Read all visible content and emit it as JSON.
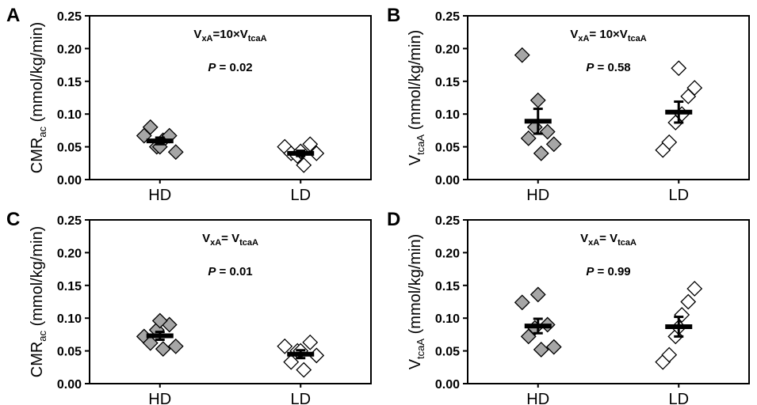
{
  "colors": {
    "hd_fill": "#a6a6a6",
    "ld_fill": "#ffffff",
    "stroke": "#000000"
  },
  "chart_data": [
    {
      "panel": "A",
      "type": "scatter",
      "ylabel_main": "CMR",
      "ylabel_sub": "ac",
      "ylabel_tail": "(mmol/kg/min)",
      "annotation": {
        "lhs": "V",
        "lhs_sub": "xA",
        "op": "=10×V",
        "rhs_sub": "tcaA"
      },
      "p_label": "P",
      "p_value": "= 0.02",
      "ylim": [
        0,
        0.25
      ],
      "yticks": [
        "0.00",
        "0.05",
        "0.10",
        "0.15",
        "0.20",
        "0.25"
      ],
      "categories": [
        "HD",
        "LD"
      ],
      "series": [
        {
          "category": "HD",
          "fill": "hd",
          "points": [
            0.067,
            0.08,
            0.05,
            0.06,
            0.067,
            0.042,
            0.05
          ],
          "mean": 0.059,
          "sem": 0.005
        },
        {
          "category": "LD",
          "fill": "ld",
          "points": [
            0.05,
            0.04,
            0.036,
            0.022,
            0.054,
            0.04,
            0.043
          ],
          "mean": 0.04,
          "sem": 0.004
        }
      ]
    },
    {
      "panel": "B",
      "type": "scatter",
      "ylabel_main": "V",
      "ylabel_sub": "tcaA",
      "ylabel_tail": "(mmol/kg/min)",
      "annotation": {
        "lhs": "V",
        "lhs_sub": "xA",
        "op": "= 10×V",
        "rhs_sub": "tcaA"
      },
      "p_label": "P",
      "p_value": "= 0.58",
      "ylim": [
        0,
        0.25
      ],
      "yticks": [
        "0.00",
        "0.05",
        "0.10",
        "0.15",
        "0.20",
        "0.25"
      ],
      "categories": [
        "HD",
        "LD"
      ],
      "series": [
        {
          "category": "HD",
          "fill": "hd",
          "points": [
            0.19,
            0.063,
            0.08,
            0.04,
            0.073,
            0.054,
            0.121
          ],
          "mean": 0.089,
          "sem": 0.019
        },
        {
          "category": "LD",
          "fill": "ld",
          "points": [
            0.045,
            0.057,
            0.087,
            0.1,
            0.127,
            0.14,
            0.17
          ],
          "mean": 0.103,
          "sem": 0.016
        }
      ]
    },
    {
      "panel": "C",
      "type": "scatter",
      "ylabel_main": "CMR",
      "ylabel_sub": "ac",
      "ylabel_tail": "(mmol/kg/min)",
      "annotation": {
        "lhs": "V",
        "lhs_sub": "xA",
        "op": "= V",
        "rhs_sub": "tcaA"
      },
      "p_label": "P",
      "p_value": "= 0.01",
      "ylim": [
        0,
        0.25
      ],
      "yticks": [
        "0.00",
        "0.05",
        "0.10",
        "0.15",
        "0.20",
        "0.25"
      ],
      "categories": [
        "HD",
        "LD"
      ],
      "series": [
        {
          "category": "HD",
          "fill": "hd",
          "points": [
            0.072,
            0.062,
            0.082,
            0.053,
            0.09,
            0.057,
            0.096
          ],
          "mean": 0.073,
          "sem": 0.006
        },
        {
          "category": "LD",
          "fill": "ld",
          "points": [
            0.057,
            0.033,
            0.05,
            0.021,
            0.063,
            0.043,
            0.05
          ],
          "mean": 0.045,
          "sem": 0.006
        }
      ]
    },
    {
      "panel": "D",
      "type": "scatter",
      "ylabel_main": "V",
      "ylabel_sub": "tcaA",
      "ylabel_tail": "(mmol/kg/min)",
      "annotation": {
        "lhs": "V",
        "lhs_sub": "xA",
        "op": "= V",
        "rhs_sub": "tcaA"
      },
      "p_label": "P",
      "p_value": "= 0.99",
      "ylim": [
        0,
        0.25
      ],
      "yticks": [
        "0.00",
        "0.05",
        "0.10",
        "0.15",
        "0.20",
        "0.25"
      ],
      "categories": [
        "HD",
        "LD"
      ],
      "series": [
        {
          "category": "HD",
          "fill": "hd",
          "points": [
            0.124,
            0.072,
            0.085,
            0.052,
            0.09,
            0.056,
            0.136
          ],
          "mean": 0.088,
          "sem": 0.011
        },
        {
          "category": "LD",
          "fill": "ld",
          "points": [
            0.033,
            0.044,
            0.072,
            0.105,
            0.125,
            0.145,
            0.086
          ],
          "mean": 0.087,
          "sem": 0.015
        }
      ]
    }
  ]
}
